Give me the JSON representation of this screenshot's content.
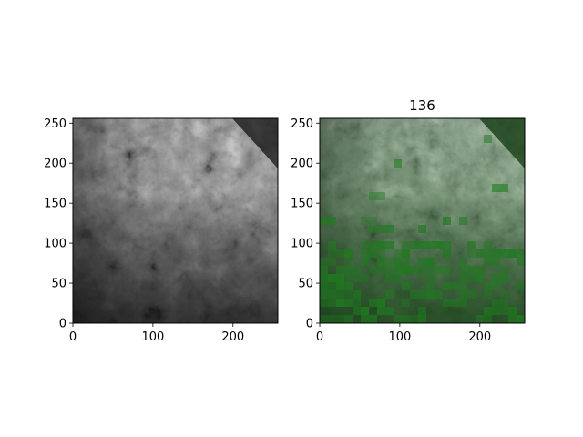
{
  "figure": {
    "panels": [
      {
        "id": "left",
        "title": "",
        "image": "grayscale terrain image",
        "xlim": [
          0,
          256
        ],
        "ylim": [
          0,
          256
        ],
        "xticks": [
          0,
          100,
          200
        ],
        "yticks": [
          0,
          50,
          100,
          150,
          200,
          250
        ]
      },
      {
        "id": "right",
        "title": "136",
        "image": "terrain image with green mask overlay",
        "overlay_color": "#1f7a1f",
        "xlim": [
          0,
          256
        ],
        "ylim": [
          0,
          256
        ],
        "xticks": [
          0,
          100,
          200
        ],
        "yticks": [
          0,
          50,
          100,
          150,
          200,
          250
        ]
      }
    ],
    "xtick_labels": [
      "0",
      "100",
      "200"
    ],
    "ytick_labels": [
      "0",
      "50",
      "100",
      "150",
      "200",
      "250"
    ]
  }
}
